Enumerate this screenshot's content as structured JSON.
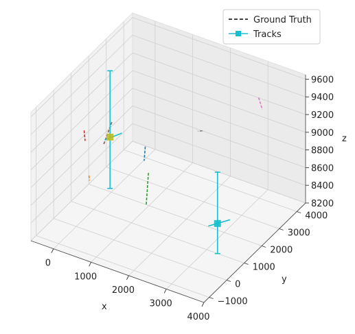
{
  "chart_data": {
    "type": "3d-line",
    "title": "",
    "xlabel": "x",
    "ylabel": "y",
    "zlabel": "z",
    "xlim": [
      -600,
      4000
    ],
    "ylim": [
      -1300,
      4500
    ],
    "zlim": [
      8200,
      9650
    ],
    "x_ticks": [
      0,
      1000,
      2000,
      3000,
      4000
    ],
    "y_ticks": [
      -1000,
      0,
      1000,
      2000,
      3000,
      4000
    ],
    "z_ticks": [
      8200,
      8400,
      8600,
      8800,
      9000,
      9200,
      9400,
      9600
    ],
    "grid": true,
    "legend_position": "top-right",
    "legend": [
      {
        "label": "Ground Truth",
        "style": "dashed",
        "color": "#000000"
      },
      {
        "label": "Tracks",
        "style": "solid-square-marker",
        "color": "#17becf"
      }
    ],
    "ground_truth": [
      {
        "color": "#d62728",
        "points": [
          [
            -350,
            1200,
            9000
          ],
          [
            -300,
            1150,
            8900
          ]
        ]
      },
      {
        "color": "#ff7f0e",
        "points": [
          [
            -150,
            1050,
            8550
          ],
          [
            -130,
            1030,
            8500
          ]
        ]
      },
      {
        "color": "#8c564b",
        "points": [
          [
            200,
            1600,
            9100
          ],
          [
            50,
            1450,
            8850
          ]
        ]
      },
      {
        "color": "#1f77b4",
        "points": [
          [
            810,
            2200,
            8800
          ],
          [
            790,
            2180,
            8640
          ]
        ]
      },
      {
        "color": "#7f7f7f",
        "points": [
          [
            2050,
            2800,
            9050
          ],
          [
            1950,
            2750,
            9040
          ]
        ]
      },
      {
        "color": "#2ca02c",
        "points": [
          [
            1220,
            1500,
            8700
          ],
          [
            1180,
            1460,
            8340
          ]
        ]
      },
      {
        "color": "#e377c2",
        "points": [
          [
            3450,
            3000,
            9600
          ],
          [
            3550,
            3000,
            9480
          ]
        ]
      }
    ],
    "tracks": [
      {
        "color": "#17becf",
        "marker_color": "#bcbd22",
        "point": [
          200,
          1500,
          8950
        ],
        "z_error": [
          8370,
          9700
        ],
        "xy_segment": [
          [
            150,
            1300,
            8950
          ],
          [
            350,
            1850,
            8950
          ]
        ]
      },
      {
        "color": "#17becf",
        "marker_color": "#17becf",
        "point": [
          3080,
          1450,
          8420
        ],
        "z_error": [
          8080,
          9000
        ],
        "xy_segment": [
          [
            2950,
            1200,
            8420
          ],
          [
            3250,
            1800,
            8420
          ]
        ]
      }
    ]
  }
}
